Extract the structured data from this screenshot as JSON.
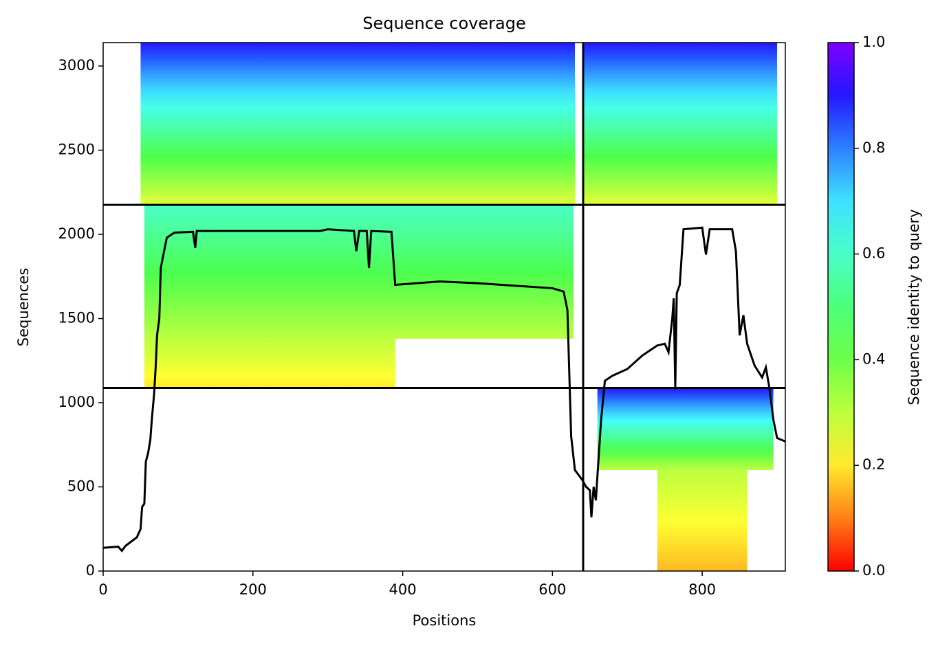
{
  "chart_data": {
    "type": "msa-coverage",
    "title": "Sequence coverage",
    "xlabel": "Positions",
    "ylabel": "Sequences",
    "xlim": [
      0,
      911
    ],
    "ylim": [
      0,
      3139
    ],
    "xticks": [
      0,
      200,
      400,
      600,
      800
    ],
    "yticks": [
      0,
      500,
      1000,
      1500,
      2000,
      2500,
      3000
    ],
    "x_boundaries": [
      641
    ],
    "y_boundaries": [
      1088,
      2175
    ],
    "blocks": [
      {
        "x": [
          50,
          630
        ],
        "y": [
          2175,
          3139
        ],
        "identity": [
          0.25,
          0.9
        ]
      },
      {
        "x": [
          641,
          900
        ],
        "y": [
          2175,
          3139
        ],
        "identity": [
          0.25,
          0.9
        ]
      },
      {
        "x": [
          55,
          628
        ],
        "y": [
          1380,
          2175
        ],
        "identity": [
          0.3,
          0.6
        ]
      },
      {
        "x": [
          55,
          390
        ],
        "y": [
          1088,
          1380
        ],
        "identity": [
          0.2,
          0.3
        ]
      },
      {
        "x": [
          660,
          895
        ],
        "y": [
          600,
          1088
        ],
        "identity": [
          0.3,
          0.9
        ]
      },
      {
        "x": [
          740,
          860
        ],
        "y": [
          0,
          600
        ],
        "identity": [
          0.15,
          0.3
        ]
      }
    ],
    "line": {
      "color": "#000000",
      "x": [
        0,
        20,
        25,
        30,
        45,
        50,
        52,
        55,
        57,
        60,
        63,
        65,
        68,
        70,
        72,
        75,
        77,
        80,
        85,
        95,
        120,
        123,
        125,
        200,
        290,
        300,
        335,
        338,
        342,
        352,
        355,
        358,
        385,
        390,
        450,
        500,
        600,
        615,
        620,
        625,
        630,
        640,
        645,
        650,
        652,
        655,
        658,
        660,
        665,
        670,
        680,
        700,
        720,
        740,
        750,
        755,
        760,
        762,
        764,
        766,
        770,
        775,
        800,
        805,
        810,
        840,
        845,
        850,
        855,
        860,
        870,
        880,
        885,
        890,
        895,
        900,
        911
      ],
      "values": [
        138,
        145,
        120,
        150,
        200,
        250,
        380,
        400,
        650,
        700,
        780,
        900,
        1050,
        1200,
        1400,
        1500,
        1800,
        1870,
        1980,
        2010,
        2015,
        1920,
        2020,
        2020,
        2020,
        2030,
        2020,
        1900,
        2020,
        2020,
        1800,
        2020,
        2015,
        1700,
        1720,
        1710,
        1680,
        1660,
        1550,
        800,
        600,
        540,
        500,
        480,
        320,
        500,
        420,
        560,
        900,
        1130,
        1160,
        1200,
        1280,
        1340,
        1350,
        1300,
        1500,
        1620,
        1080,
        1650,
        1700,
        2030,
        2040,
        1880,
        2030,
        2030,
        1900,
        1400,
        1520,
        1350,
        1220,
        1150,
        1210,
        1080,
        900,
        790,
        770
      ]
    },
    "colorbar": {
      "label": "Sequence identity to query",
      "lim": [
        0,
        1
      ],
      "ticks": [
        {
          "value": 0,
          "label": "0.0"
        },
        {
          "value": 0.2,
          "label": "0.2"
        },
        {
          "value": 0.4,
          "label": "0.4"
        },
        {
          "value": 0.6,
          "label": "0.6"
        },
        {
          "value": 0.8,
          "label": "0.8"
        },
        {
          "value": 1,
          "label": "1.0"
        }
      ]
    }
  }
}
